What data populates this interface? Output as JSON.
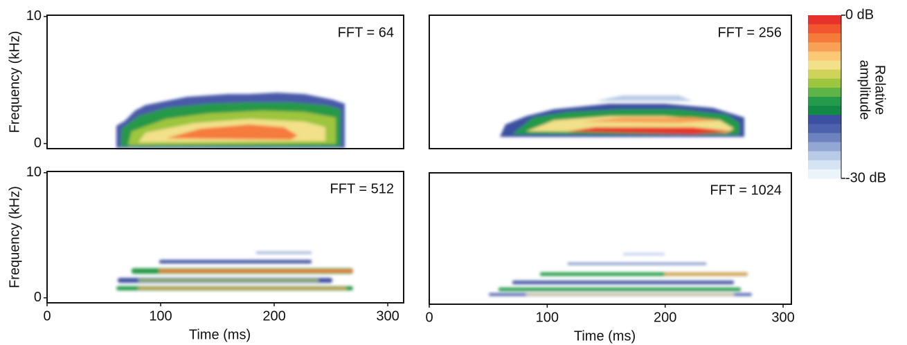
{
  "chart_data": [
    {
      "type": "spectrogram",
      "annotation": "FFT = 64",
      "ylabel": "Frequency (kHz)",
      "xlim": [
        0,
        314
      ],
      "ylim": [
        -0.4,
        10.1
      ],
      "yticks": [
        0,
        10
      ]
    },
    {
      "type": "spectrogram",
      "annotation": "FFT = 256",
      "xlim": [
        0,
        307
      ],
      "ylim": [
        -0.4,
        10.1
      ]
    },
    {
      "type": "spectrogram",
      "annotation": "FFT = 512",
      "ylabel": "Frequency (kHz)",
      "xlabel": "Time (ms)",
      "xlim": [
        0,
        314
      ],
      "ylim": [
        -0.4,
        10.1
      ],
      "xticks": [
        0,
        100,
        200,
        300
      ],
      "yticks": [
        0,
        10
      ]
    },
    {
      "type": "spectrogram",
      "annotation": "FFT = 1024",
      "xlabel": "Time (ms)",
      "xlim": [
        0,
        307
      ],
      "ylim": [
        -0.4,
        10.1
      ],
      "xticks": [
        0,
        100,
        200,
        300
      ]
    },
    {
      "type": "colorbar",
      "title": [
        "Relative",
        "amplitude"
      ],
      "lim": [
        -30,
        0
      ],
      "ticks": [
        {
          "value": 0,
          "label": "0 dB"
        },
        {
          "value": -30,
          "label": "-30 dB"
        }
      ],
      "colors": [
        "#e8312b",
        "#f1562f",
        "#f57b3c",
        "#f8a055",
        "#fbc876",
        "#f2e08a",
        "#cfd35a",
        "#9ec53e",
        "#5fb447",
        "#249a4a",
        "#128a45",
        "#3c4fa0",
        "#4d62ad",
        "#6d83c0",
        "#93a7d4",
        "#b7cbe6",
        "#d5e4f3",
        "#ebf3fb"
      ]
    }
  ]
}
